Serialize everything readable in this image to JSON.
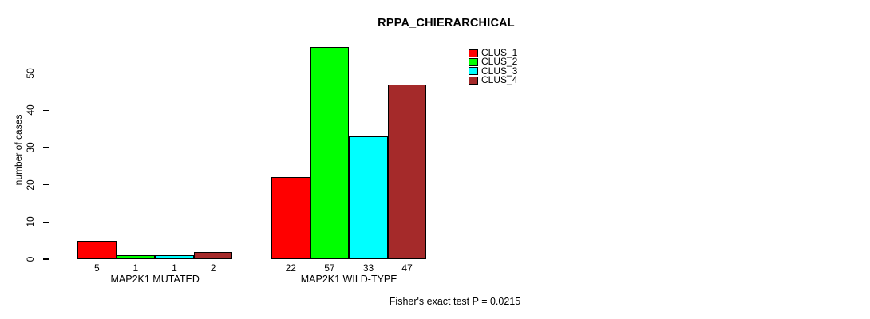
{
  "chart_data": {
    "type": "bar",
    "title": "RPPA_CHIERARCHICAL",
    "ylabel": "number of cases",
    "xlabel": "",
    "categories": [
      "MAP2K1 MUTATED",
      "MAP2K1 WILD-TYPE"
    ],
    "series": [
      {
        "name": "CLUS_1",
        "color": "#ff0000",
        "values": [
          5,
          22
        ]
      },
      {
        "name": "CLUS_2",
        "color": "#00ff00",
        "values": [
          1,
          57
        ]
      },
      {
        "name": "CLUS_3",
        "color": "#00ffff",
        "values": [
          1,
          33
        ]
      },
      {
        "name": "CLUS_4",
        "color": "#a52a2a",
        "values": [
          2,
          47
        ]
      }
    ],
    "yticks": [
      0,
      10,
      20,
      30,
      40,
      50
    ],
    "ylim": [
      0,
      50
    ],
    "grid": false,
    "legend_position": "top-right",
    "bar_border_color": "#000000",
    "bar_value_labels_shown": true,
    "annotation": "Fisher's exact test P = 0.0215"
  }
}
